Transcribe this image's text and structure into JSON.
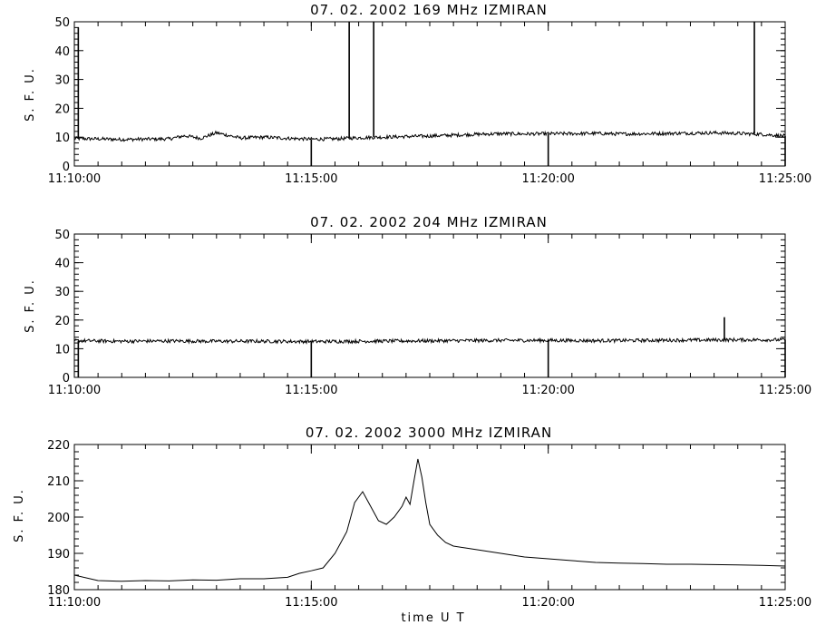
{
  "chart_data": [
    {
      "type": "line",
      "title": "07.  02.  2002    169  MHz    IZMIRAN",
      "ylabel": "S.  F.  U.",
      "xlabel": "",
      "xlim": [
        "11:10:00",
        "11:25:00"
      ],
      "ylim": [
        0,
        50
      ],
      "x_ticks": [
        "11:10:00",
        "11:15:00",
        "11:20:00",
        "11:25:00"
      ],
      "y_ticks": [
        0,
        10,
        20,
        30,
        40,
        50
      ],
      "grid": false,
      "series": [
        {
          "x": [
            "11:10:00",
            "11:10:30",
            "11:11:00",
            "11:11:30",
            "11:12:00",
            "11:12:20",
            "11:12:40",
            "11:13:00",
            "11:13:30",
            "11:14:00",
            "11:14:30",
            "11:15:00",
            "11:15:30",
            "11:16:00",
            "11:16:30",
            "11:17:00",
            "11:17:30",
            "11:18:00",
            "11:18:30",
            "11:19:00",
            "11:19:30",
            "11:20:00",
            "11:20:30",
            "11:21:00",
            "11:21:30",
            "11:22:00",
            "11:22:30",
            "11:23:00",
            "11:23:30",
            "11:24:00",
            "11:24:30",
            "11:25:00"
          ],
          "values": [
            9.5,
            9.4,
            9.2,
            9.3,
            9.4,
            10.5,
            9.6,
            11.5,
            9.7,
            10,
            9.6,
            9.3,
            9.4,
            9.8,
            10,
            10.2,
            10.4,
            10.7,
            11,
            11.2,
            11.1,
            11.2,
            11.2,
            11.3,
            11.1,
            11.2,
            11.3,
            11.4,
            11.5,
            11.3,
            11,
            10.4
          ]
        }
      ],
      "spikes": [
        {
          "x": "11:10:05",
          "value": 48
        },
        {
          "x": "11:15:00",
          "value": 0
        },
        {
          "x": "11:15:48",
          "value": 50
        },
        {
          "x": "11:16:19",
          "value": 50
        },
        {
          "x": "11:20:00",
          "value": 0
        },
        {
          "x": "11:24:21",
          "value": 50
        },
        {
          "x": "11:25:00",
          "value": 0
        }
      ]
    },
    {
      "type": "line",
      "title": "07.  02.  2002    204  MHz    IZMIRAN",
      "ylabel": "S.  F.  U.",
      "xlabel": "",
      "xlim": [
        "11:10:00",
        "11:25:00"
      ],
      "ylim": [
        0,
        50
      ],
      "x_ticks": [
        "11:10:00",
        "11:15:00",
        "11:20:00",
        "11:25:00"
      ],
      "y_ticks": [
        0,
        10,
        20,
        30,
        40,
        50
      ],
      "grid": false,
      "series": [
        {
          "x": [
            "11:10:00",
            "11:11:00",
            "11:12:00",
            "11:13:00",
            "11:14:00",
            "11:15:00",
            "11:16:00",
            "11:17:00",
            "11:18:00",
            "11:19:00",
            "11:20:00",
            "11:21:00",
            "11:22:00",
            "11:23:00",
            "11:24:00",
            "11:25:00"
          ],
          "values": [
            12.8,
            12.6,
            12.7,
            12.6,
            12.6,
            12.5,
            12.6,
            12.7,
            12.8,
            12.9,
            12.9,
            12.8,
            12.9,
            13,
            13.1,
            13.1
          ]
        }
      ],
      "spikes": [
        {
          "x": "11:10:05",
          "value": 0
        },
        {
          "x": "11:15:00",
          "value": 0
        },
        {
          "x": "11:20:00",
          "value": 0
        },
        {
          "x": "11:23:43",
          "value": 21
        },
        {
          "x": "11:25:00",
          "value": 0
        }
      ]
    },
    {
      "type": "line",
      "title": "07.  02.  2002    3000  MHz    IZMIRAN",
      "ylabel": "S.  F.  U.",
      "xlabel": "time    U  T",
      "xlim": [
        "11:10:00",
        "11:25:00"
      ],
      "ylim": [
        180,
        220
      ],
      "x_ticks": [
        "11:10:00",
        "11:15:00",
        "11:20:00",
        "11:25:00"
      ],
      "y_ticks": [
        180,
        190,
        200,
        210,
        220
      ],
      "grid": false,
      "series": [
        {
          "x": [
            "11:10:00",
            "11:10:30",
            "11:11:00",
            "11:11:30",
            "11:12:00",
            "11:12:30",
            "11:13:00",
            "11:13:30",
            "11:14:00",
            "11:14:30",
            "11:14:45",
            "11:15:00",
            "11:15:15",
            "11:15:30",
            "11:15:45",
            "11:15:55",
            "11:16:05",
            "11:16:15",
            "11:16:25",
            "11:16:35",
            "11:16:45",
            "11:16:55",
            "11:17:00",
            "11:17:05",
            "11:17:10",
            "11:17:15",
            "11:17:20",
            "11:17:25",
            "11:17:30",
            "11:17:40",
            "11:17:50",
            "11:18:00",
            "11:18:15",
            "11:18:30",
            "11:19:00",
            "11:19:30",
            "11:20:00",
            "11:20:30",
            "11:21:00",
            "11:21:30",
            "11:22:00",
            "11:22:30",
            "11:23:00",
            "11:23:30",
            "11:24:00",
            "11:24:30",
            "11:25:00"
          ],
          "values": [
            184,
            182.5,
            182.3,
            182.5,
            182.4,
            182.7,
            182.6,
            183,
            183,
            183.4,
            184.5,
            185.2,
            186,
            190,
            196,
            204,
            207,
            203,
            199,
            198,
            200,
            203,
            205.5,
            203.5,
            210,
            216,
            211,
            204,
            198,
            195,
            193,
            192,
            191.5,
            191,
            190,
            189,
            188.5,
            188,
            187.5,
            187.3,
            187.2,
            187,
            187,
            186.9,
            186.8,
            186.7,
            186.5
          ]
        }
      ],
      "spikes": []
    }
  ]
}
